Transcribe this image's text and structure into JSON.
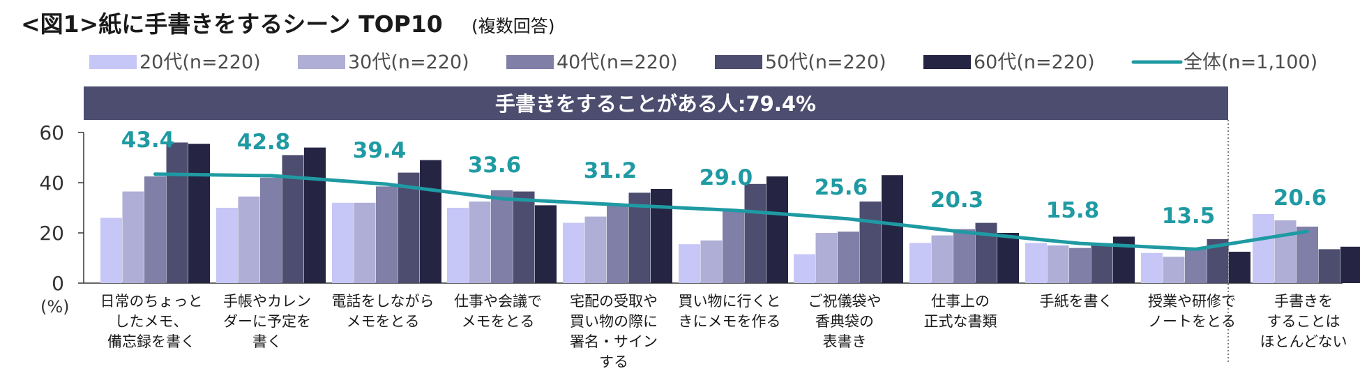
{
  "chart_data": {
    "type": "bar",
    "title": "<図1>紙に手書きをするシーン TOP10",
    "subtitle": "(複数回答)",
    "banner": "手書きをすることがある人:79.4%",
    "ylabel": "(%)",
    "ylim": [
      0,
      60
    ],
    "yticks": [
      0,
      20,
      40,
      60
    ],
    "categories": [
      [
        "日常のちょっと",
        "したメモ、",
        "備忘録を書く"
      ],
      [
        "手帳やカレン",
        "ダーに予定を",
        "書く"
      ],
      [
        "電話をしながら",
        "メモをとる"
      ],
      [
        "仕事や会議で",
        "メモをとる"
      ],
      [
        "宅配の受取や",
        "買い物の際に",
        "署名・サイン",
        "する"
      ],
      [
        "買い物に行くと",
        "きにメモを作る"
      ],
      [
        "ご祝儀袋や",
        "香典袋の",
        "表書き"
      ],
      [
        "仕事上の",
        "正式な書類"
      ],
      [
        "手紙を書く"
      ],
      [
        "授業や研修で",
        "ノートをとる"
      ],
      [
        "手書きを",
        "することは",
        "ほとんどない"
      ]
    ],
    "series": [
      {
        "name": "20代(n=220)",
        "color": "#c6c6f7",
        "values": [
          26,
          30,
          32,
          30,
          24,
          15.5,
          11.5,
          16,
          16,
          12,
          27.5
        ]
      },
      {
        "name": "30代(n=220)",
        "color": "#aeaed6",
        "values": [
          36.5,
          34.5,
          32,
          32.5,
          26.5,
          17,
          20,
          19,
          15,
          10.5,
          25
        ]
      },
      {
        "name": "40代(n=220)",
        "color": "#7f7fa8",
        "values": [
          42.5,
          42,
          38.5,
          37,
          31,
          28.5,
          20.5,
          21.5,
          14,
          13.5,
          22.5
        ]
      },
      {
        "name": "50代(n=220)",
        "color": "#4d4d70",
        "values": [
          56,
          51,
          44,
          36.5,
          36,
          39.5,
          32.5,
          24,
          15,
          17.5,
          13.5
        ]
      },
      {
        "name": "60代(n=220)",
        "color": "#252543",
        "values": [
          55.5,
          54,
          49,
          31,
          37.5,
          42.5,
          43,
          20,
          18.5,
          12.5,
          14.5
        ]
      }
    ],
    "total": {
      "name": "全体(n=1,100)",
      "color": "#1f9aa3",
      "values": [
        43.4,
        42.8,
        39.4,
        33.6,
        31.2,
        29.0,
        25.6,
        20.3,
        15.8,
        13.5,
        20.6
      ],
      "labels": [
        "43.4",
        "42.8",
        "39.4",
        "33.6",
        "31.2",
        "29.0",
        "25.6",
        "20.3",
        "15.8",
        "13.5",
        "20.6"
      ]
    },
    "banner_color": "#4d4d70",
    "grid": false,
    "legend_position": "top"
  }
}
